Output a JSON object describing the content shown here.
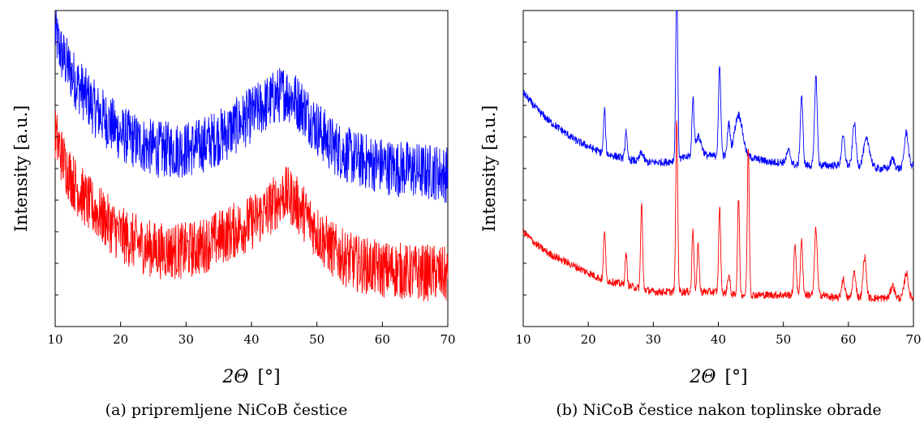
{
  "panels": [
    {
      "caption": "(a) pripremljene NiCoB čestice",
      "ylabel": "Intensity [a.u.]",
      "xlabel_symbol": "2Θ",
      "xlabel_unit": "[°]"
    },
    {
      "caption": "(b) NiCoB čestice nakon toplinske obrade",
      "ylabel": "Intensity [a.u.]",
      "xlabel_symbol": "2Θ",
      "xlabel_unit": "[°]"
    }
  ],
  "chart_data": [
    {
      "type": "line",
      "xlim": [
        10,
        70
      ],
      "ylim": [
        0,
        100
      ],
      "y_ticks_labeled": false,
      "grid": false,
      "legend": "none",
      "x_ticks": [
        10,
        20,
        30,
        40,
        50,
        60,
        70
      ],
      "series": [
        {
          "color": "#0000ff",
          "noise": 9,
          "x": [
            10,
            11,
            12,
            13,
            14,
            15,
            16,
            17,
            18,
            19,
            20,
            22,
            24,
            26,
            28,
            30,
            32,
            34,
            36,
            38,
            40,
            42,
            44,
            45,
            46,
            48,
            50,
            52,
            54,
            56,
            58,
            60,
            62,
            64,
            66,
            68,
            70
          ],
          "y": [
            93,
            86,
            82,
            78,
            75,
            72,
            69,
            67,
            65,
            63,
            61,
            59,
            57,
            56,
            56,
            56,
            57,
            59,
            61,
            64,
            67,
            70,
            73,
            74,
            73,
            69,
            63,
            58,
            55,
            53,
            52,
            51,
            50,
            50,
            49,
            49,
            48
          ]
        },
        {
          "color": "#ff0000",
          "noise": 9,
          "x": [
            10,
            11,
            12,
            13,
            14,
            15,
            16,
            17,
            18,
            19,
            20,
            22,
            24,
            26,
            28,
            30,
            32,
            34,
            36,
            38,
            40,
            42,
            44,
            45,
            46,
            48,
            50,
            52,
            54,
            56,
            58,
            60,
            62,
            64,
            66,
            68,
            70
          ],
          "y": [
            61,
            54,
            49,
            45,
            42,
            39,
            37,
            35,
            33,
            31,
            29,
            27,
            25,
            24,
            24,
            24,
            25,
            27,
            29,
            31,
            33,
            36,
            40,
            42,
            41,
            36,
            30,
            25,
            22,
            20,
            19,
            18,
            18,
            17,
            17,
            17,
            16
          ]
        }
      ]
    },
    {
      "type": "line",
      "xlim": [
        10,
        70
      ],
      "ylim": [
        0,
        100
      ],
      "y_ticks_labeled": false,
      "grid": false,
      "legend": "none",
      "x_ticks": [
        10,
        20,
        30,
        40,
        50,
        60,
        70
      ],
      "series": [
        {
          "color": "#0000ff",
          "noise": 1.2,
          "baseline": {
            "x": [
              10,
              12,
              14,
              16,
              18,
              20,
              22,
              24,
              26,
              28,
              30,
              32,
              34,
              36,
              38,
              40,
              42,
              44,
              46,
              48,
              50,
              52,
              54,
              56,
              58,
              60,
              62,
              64,
              66,
              68,
              70
            ],
            "y": [
              74,
              69,
              65,
              62,
              59,
              57,
              55,
              54,
              53,
              52,
              52,
              52,
              53,
              54,
              54,
              54,
              54,
              54,
              53,
              52,
              52,
              51,
              51,
              51,
              51,
              51,
              50,
              50,
              50,
              50,
              51
            ]
          },
          "peaks": [
            [
              22.5,
              14,
              0.15
            ],
            [
              25.8,
              9,
              0.15
            ],
            [
              28.2,
              3,
              0.3
            ],
            [
              33.6,
              57,
              0.15
            ],
            [
              36.1,
              17,
              0.15
            ],
            [
              36.9,
              6,
              0.5
            ],
            [
              40.2,
              28,
              0.18
            ],
            [
              41.6,
              10,
              0.2
            ],
            [
              43.1,
              13,
              0.6
            ],
            [
              50.8,
              4,
              0.3
            ],
            [
              52.8,
              22,
              0.2
            ],
            [
              55.0,
              28,
              0.2
            ],
            [
              59.2,
              9,
              0.25
            ],
            [
              60.9,
              14,
              0.25
            ],
            [
              62.8,
              9,
              0.5
            ],
            [
              66.8,
              3,
              0.3
            ],
            [
              68.9,
              11,
              0.3
            ]
          ]
        },
        {
          "color": "#ff0000",
          "noise": 1.2,
          "baseline": {
            "x": [
              10,
              12,
              14,
              16,
              18,
              20,
              22,
              24,
              26,
              28,
              30,
              32,
              34,
              36,
              38,
              40,
              42,
              44,
              46,
              48,
              50,
              52,
              54,
              56,
              58,
              60,
              62,
              64,
              66,
              68,
              70
            ],
            "y": [
              30,
              26,
              23,
              21,
              19,
              17,
              15,
              14,
              13,
              12,
              11,
              11,
              11,
              11,
              11,
              11,
              10,
              10,
              10,
              10,
              10,
              10,
              10,
              10,
              9,
              9,
              9,
              9,
              9,
              9,
              9
            ]
          },
          "peaks": [
            [
              22.5,
              16,
              0.15
            ],
            [
              25.8,
              10,
              0.15
            ],
            [
              28.2,
              27,
              0.15
            ],
            [
              33.6,
              54,
              0.15
            ],
            [
              36.1,
              20,
              0.15
            ],
            [
              36.9,
              15,
              0.15
            ],
            [
              40.2,
              27,
              0.15
            ],
            [
              41.6,
              6,
              0.2
            ],
            [
              43.1,
              31,
              0.15
            ],
            [
              44.6,
              47,
              0.15
            ],
            [
              51.8,
              16,
              0.18
            ],
            [
              52.8,
              17,
              0.18
            ],
            [
              55.0,
              21,
              0.2
            ],
            [
              59.2,
              6,
              0.25
            ],
            [
              60.9,
              8,
              0.25
            ],
            [
              62.5,
              13,
              0.25
            ],
            [
              66.8,
              4,
              0.3
            ],
            [
              68.9,
              8,
              0.3
            ]
          ]
        }
      ]
    }
  ]
}
